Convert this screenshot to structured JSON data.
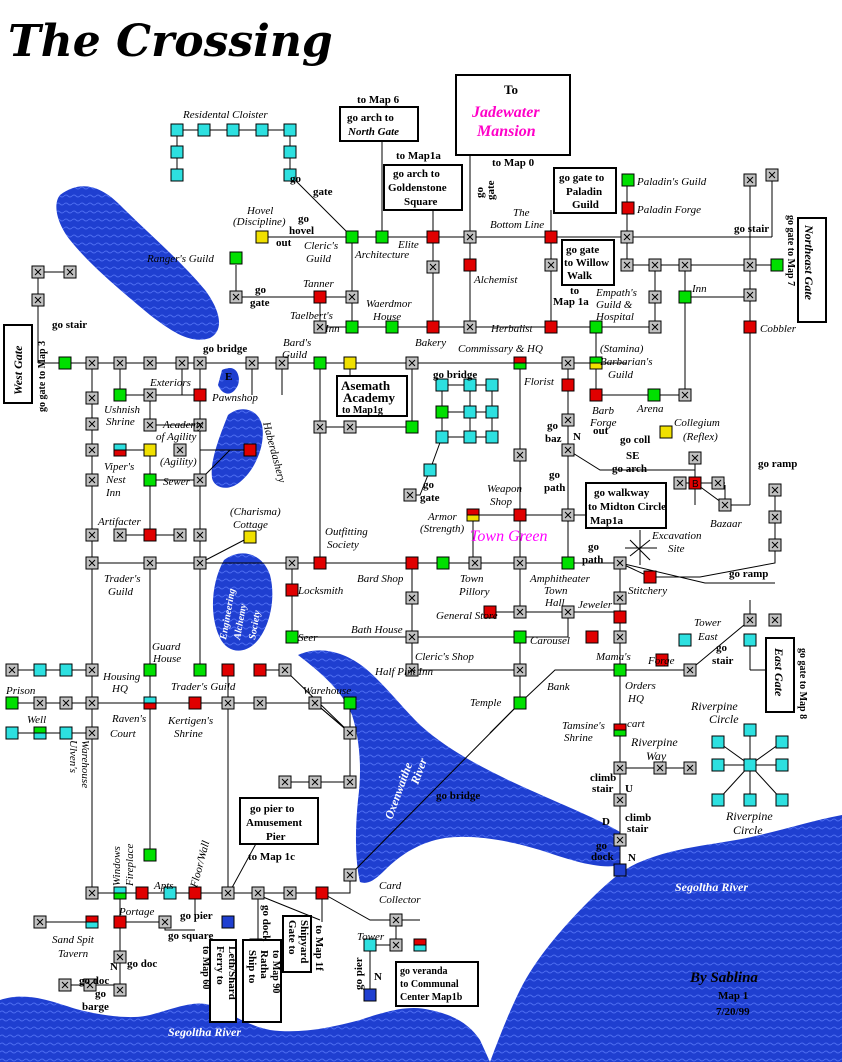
{
  "title": "The Crossing",
  "credit": {
    "by": "By Sablina",
    "map": "Map 1",
    "date": "7/20/99"
  },
  "colors": {
    "room": "#c0c0c0",
    "shop": "#00e000",
    "guild_red": "#e00000",
    "special_yellow": "#f0e000",
    "water": "#1f3fd0",
    "portal": "#2de0e0",
    "town_green": "#ff00ff"
  },
  "labels": {
    "residential_cloister": "Residental Cloister",
    "hovel": "Hovel",
    "discipline": "(Discipline)",
    "go_hovel": "go",
    "go_hovel2": "hovel",
    "out_hovel": "out",
    "clerics_guild": "Cleric's",
    "clerics_guild2": "Guild",
    "architecture": "Architecture",
    "elite": "Elite",
    "rangers_guild": "Ranger's Guild",
    "tanner": "Tanner",
    "taelberts_inn": "Taelbert's",
    "taelberts_inn2": "Inn",
    "waerdmor_house": "Waerdmor",
    "waerdmor_house2": "House",
    "bakery": "Bakery",
    "alchemist": "Alchemist",
    "the_bottom_line": "The",
    "the_bottom_line2": "Bottom Line",
    "herbalist": "Herbalist",
    "paladins_guild": "Paladin's Guild",
    "paladin_forge": "Paladin Forge",
    "empaths_guild": "Empath's",
    "empaths_guild2": "Guild &",
    "empaths_guild3": "Hospital",
    "inn": "Inn",
    "cobbler": "Cobbler",
    "bards_guild": "Bard's",
    "bards_guild2": "Guild",
    "commissary": "Commissary & HQ",
    "stamina": "(Stamina)",
    "barbarians_guild": "Barbarian's",
    "barbarians_guild2": "Guild",
    "florist": "Florist",
    "barb_forge": "Barb",
    "barb_forge2": "Forge",
    "arena": "Arena",
    "collegium": "Collegium",
    "reflex": "(Reflex)",
    "out_go_coll": "out",
    "out_go_coll2": "go coll",
    "exteriors": "Exteriors",
    "pawnshop": "Pawnshop",
    "ushnish_shrine": "Ushnish",
    "ushnish_shrine2": "Shrine",
    "academy_agility": "Academy",
    "academy_agility2": "of Agility",
    "agility": "(Agility)",
    "vipers_nest": "Viper's",
    "vipers_nest2": "Nest",
    "vipers_nest3": "Inn",
    "sewer": "Sewer",
    "haberdashery": "Haberdashery",
    "charisma": "(Charisma)",
    "cottage": "Cottage",
    "artifacter": "Artifacter",
    "traders_guild_w": "Trader's",
    "traders_guild_w2": "Guild",
    "engineering": "Engineering",
    "alchemy": "Alchemy",
    "society": "Society",
    "outfitting": "Outfitting",
    "outfitting2": "Society",
    "locksmith": "Locksmith",
    "bard_shop": "Bard Shop",
    "town_pillory": "Town",
    "town_pillory2": "Pillory",
    "armor": "Armor",
    "strength": "(Strength)",
    "weapon_shop": "Weapon",
    "weapon_shop2": "Shop",
    "town_green": "Town Green",
    "amphitheater": "Amphitheater",
    "town_hall": "Town",
    "town_hall2": "Hall",
    "excavation": "Excavation",
    "excavation2": "Site",
    "stitchery": "Stitchery",
    "jeweler": "Jeweler",
    "general_store": "General Store",
    "carousel": "Carousel",
    "mamas": "Mama's",
    "seer": "Seer",
    "bath_house": "Bath House",
    "clerics_shop": "Cleric's Shop",
    "half_pint_inn": "Half Pint Inn",
    "bank": "Bank",
    "temple": "Temple",
    "forge": "Forge",
    "orders_hq": "Orders",
    "orders_hq2": "HQ",
    "tower_east": "Tower",
    "tower_east2": "East",
    "guard_house": "Guard",
    "guard_house2": "House",
    "housing_hq": "Housing",
    "housing_hq2": "HQ",
    "traders_guild_s": "Trader's Guild",
    "warehouse": "Warehouse",
    "prison": "Prison",
    "well": "Well",
    "ravens_court": "Raven's",
    "ravens_court2": "Court",
    "kertigens_shrine": "Kertigen's",
    "kertigens_shrine2": "Shrine",
    "tamsines_shrine": "Tamsine's",
    "tamsines_shrine2": "Shrine",
    "cart": "cart",
    "riverpine_way": "Riverpine",
    "riverpine_way2": "Way",
    "riverpine_circle_n": "Riverpine",
    "riverpine_circle_n2": "Circle",
    "riverpine_circle_s": "Riverpine",
    "riverpine_circle_s2": "Circle",
    "ulvens_warehouse": "Ulven's",
    "ulvens_warehouse2": "Warehouse",
    "windows": "Windows",
    "fireplace": "Fireplace",
    "apts": "Apts",
    "floor_wall": "Floor/Wall",
    "portage": "Portage",
    "sand_spit": "Sand Spit",
    "sand_spit2": "Tavern",
    "card_collector": "Card",
    "card_collector2": "Collector",
    "tower": "Tower",
    "oxenwaithe": "Oxenwaithe",
    "oxenwaithe2": "River",
    "segoltha_e": "Segoltha River",
    "segoltha_s": "Segoltha River",
    "bazaar": "Bazaar",
    "e_marker": "E",
    "b_marker": "B"
  },
  "directions": {
    "go_gate_cloister": "go",
    "go_gate_cloister2": "gate",
    "go_gate_ranger": "go",
    "go_gate_ranger2": "gate",
    "go_stair_w": "go stair",
    "go_bridge_w": "go bridge",
    "go_gate_nc": "go",
    "go_gate_nc2": "gate",
    "to_map0": "to Map 0",
    "to_map1a_n": "to Map1a",
    "to_map1a_e": "to",
    "to_map1a_e2": "Map 1a",
    "to_map6": "to Map 6",
    "go_stair_ne": "go stair",
    "go_bridge_c": "go bridge",
    "go_baz": "go",
    "go_baz2": "baz",
    "se_go_arch": "SE",
    "se_go_arch2": "go arch",
    "go_path_n": "go",
    "go_path_n2": "path",
    "go_ramp_1": "go ramp",
    "go_ramp_2": "go ramp",
    "go_gate_c": "go",
    "go_gate_c2": "gate",
    "go_path_s": "go",
    "go_path_s2": "path",
    "go_stair_e": "go",
    "go_stair_e2": "stair",
    "go_bridge_r": "go     bridge",
    "to_map1c": "to Map 1c",
    "climb_stair_u": "climb",
    "climb_stair_u2": "stair",
    "climb_stair_d": "climb",
    "climb_stair_d2": "stair",
    "go_dock": "go",
    "go_dock2": "dock",
    "go_pier_s": "go pier",
    "go_square": "go square",
    "go_dock_s": "go dock",
    "go_doc": "go doc",
    "go_doc2": "go doc",
    "go_barge": "go",
    "go_barge2": "barge",
    "go_pier_t": "go pier",
    "to_map1f": "to Map 1f",
    "n_1": "N",
    "n_2": "N",
    "n_3": "N",
    "n_4": "N",
    "u": "U",
    "d": "D"
  },
  "boxes": {
    "jadewater_to": "To",
    "jadewater_1": "Jadewater",
    "jadewater_2": "Mansion",
    "north_gate_1": "go arch to",
    "north_gate_2": "North Gate",
    "goldenstone_1": "go arch to",
    "goldenstone_2": "Goldenstone",
    "goldenstone_3": "Square",
    "paladin_1": "go gate to",
    "paladin_2": "Paladin",
    "paladin_3": "Guild",
    "willow_1": "go gate",
    "willow_2": "to Willow",
    "willow_3": "Walk",
    "northeast_gate": "Northeast Gate",
    "to_map7": "go gate to Map 7",
    "west_gate": "West Gate",
    "to_map3": "go gate to Map 3",
    "asemath_1": "Asemath",
    "asemath_2": "Academy",
    "asemath_3": "to Map1g",
    "midton_1": "go walkway",
    "midton_2": "to Midton Circle",
    "midton_3": "Map1a",
    "east_gate": "East Gate",
    "to_map8": "go gate to Map 8",
    "amusement_1": "go pier to",
    "amusement_2": "Amusement",
    "amusement_3": "Pier",
    "ferry_1": "Ferry to",
    "ferry_2": "Leth/Shard",
    "ferry_3": "to Map 60",
    "ship_1": "Ship to",
    "ship_2": "Ratha",
    "ship_3": "to Map 90",
    "shipyard_1": "Gate to",
    "shipyard_2": "Shipyard",
    "veranda_1": "go veranda",
    "veranda_2": "to Communal",
    "veranda_3": "Center Map1b"
  }
}
